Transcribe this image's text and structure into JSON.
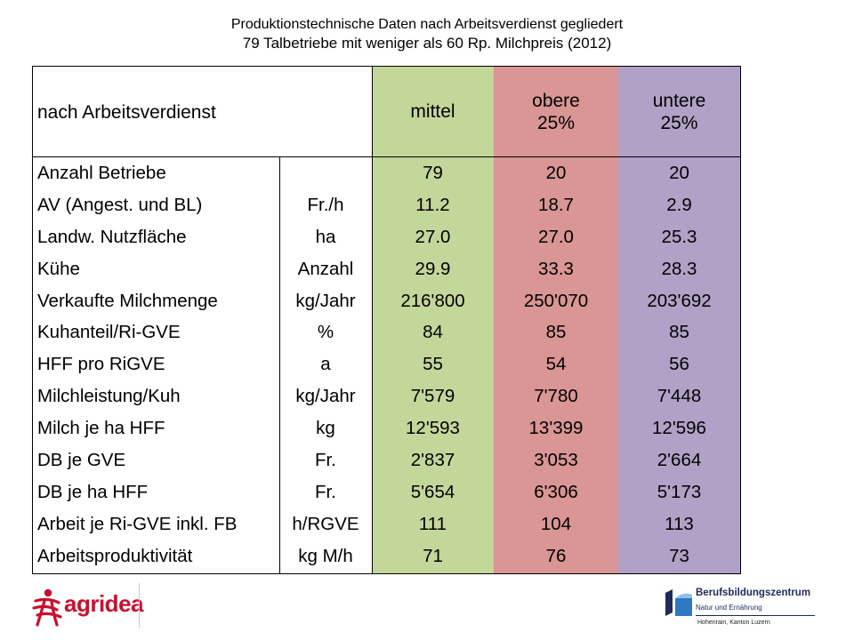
{
  "title_line1": "Produktionstechnische Daten nach Arbeitsverdienst gegliedert",
  "title_line2": "79 Talbetriebe mit weniger als 60 Rp. Milchpreis (2012)",
  "table": {
    "header_label": "nach Arbeitsverdienst",
    "groups": {
      "mittel": {
        "line1": "mittel",
        "line2": ""
      },
      "obere": {
        "line1": "obere",
        "line2": "25%"
      },
      "untere": {
        "line1": "untere",
        "line2": "25%"
      }
    },
    "group_colors": {
      "mittel": "#c4d79b",
      "obere": "#d99694",
      "untere": "#b2a1c7"
    },
    "rows": [
      {
        "label": "Anzahl Betriebe",
        "unit": "",
        "mittel": "79",
        "obere": "20",
        "untere": "20"
      },
      {
        "label": "AV (Angest. und BL)",
        "unit": "Fr./h",
        "mittel": "11.2",
        "obere": "18.7",
        "untere": "2.9"
      },
      {
        "label": "Landw. Nutzfläche",
        "unit": "ha",
        "mittel": "27.0",
        "obere": "27.0",
        "untere": "25.3"
      },
      {
        "label": "Kühe",
        "unit": "Anzahl",
        "mittel": "29.9",
        "obere": "33.3",
        "untere": "28.3"
      },
      {
        "label": "Verkaufte Milchmenge",
        "unit": "kg/Jahr",
        "mittel": "216'800",
        "obere": "250'070",
        "untere": "203'692"
      },
      {
        "label": "Kuhanteil/Ri-GVE",
        "unit": "%",
        "mittel": "84",
        "obere": "85",
        "untere": "85"
      },
      {
        "label": "HFF pro RiGVE",
        "unit": "a",
        "mittel": "55",
        "obere": "54",
        "untere": "56"
      },
      {
        "label": "Milchleistung/Kuh",
        "unit": "kg/Jahr",
        "mittel": "7'579",
        "obere": "7'780",
        "untere": "7'448"
      },
      {
        "label": "Milch je ha HFF",
        "unit": "kg",
        "mittel": "12'593",
        "obere": "13'399",
        "untere": "12'596"
      },
      {
        "label": "DB je GVE",
        "unit": "Fr.",
        "mittel": "2'837",
        "obere": "3'053",
        "untere": "2'664"
      },
      {
        "label": "DB je ha HFF",
        "unit": "Fr.",
        "mittel": "5'654",
        "obere": "6'306",
        "untere": "5'173"
      },
      {
        "label": "Arbeit je Ri-GVE inkl. FB",
        "unit": "h/RGVE",
        "mittel": "111",
        "obere": "104",
        "untere": "113"
      },
      {
        "label": "Arbeitsproduktivität",
        "unit": "kg M/h",
        "mittel": "71",
        "obere": "76",
        "untere": "73"
      }
    ]
  },
  "logos": {
    "agridea": "agridea",
    "bbz_name": "Berufsbildungszentrum",
    "bbz_sub": "Natur und Ernährung",
    "bbz_location": "Hohenrain, Kanton Luzern"
  }
}
